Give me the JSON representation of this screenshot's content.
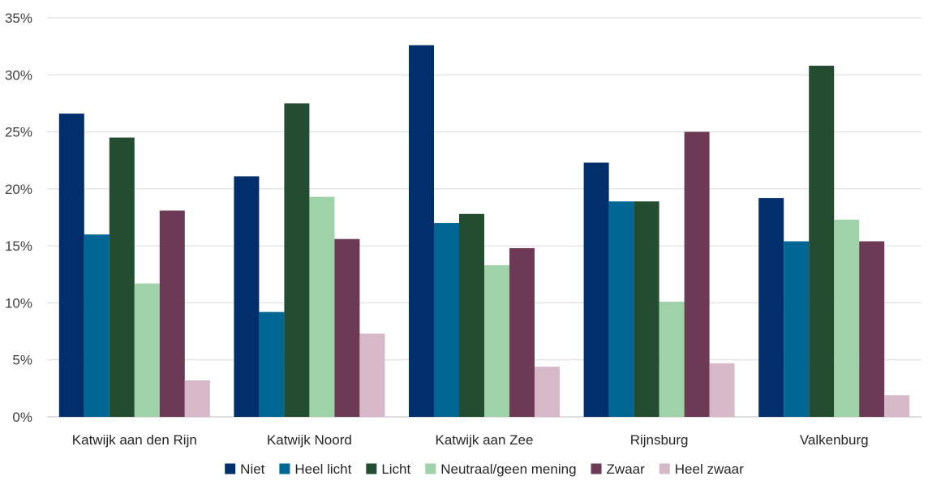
{
  "chart_data": {
    "type": "bar",
    "title": "",
    "xlabel": "",
    "ylabel": "",
    "ylim": [
      0,
      35
    ],
    "y_ticks": [
      "0%",
      "5%",
      "10%",
      "15%",
      "20%",
      "25%",
      "30%",
      "35%"
    ],
    "grid": true,
    "legend_position": "bottom",
    "categories": [
      "Katwijk aan den Rijn",
      "Katwijk Noord",
      "Katwijk aan Zee",
      "Rijnsburg",
      "Valkenburg"
    ],
    "series": [
      {
        "name": "Niet",
        "color": "#002f6c",
        "values": [
          26.6,
          21.1,
          32.6,
          22.3,
          19.2
        ]
      },
      {
        "name": "Heel licht",
        "color": "#006795",
        "values": [
          16.0,
          9.2,
          17.0,
          18.9,
          15.4
        ]
      },
      {
        "name": "Licht",
        "color": "#244c30",
        "values": [
          24.5,
          27.5,
          17.8,
          18.9,
          30.8
        ]
      },
      {
        "name": "Neutraal/geen mening",
        "color": "#9fd2a8",
        "values": [
          11.7,
          19.3,
          13.3,
          10.1,
          17.3
        ]
      },
      {
        "name": "Zwaar",
        "color": "#6d3a55",
        "values": [
          18.1,
          15.6,
          14.8,
          25.0,
          15.4
        ]
      },
      {
        "name": "Heel zwaar",
        "color": "#d7b8c9",
        "values": [
          3.2,
          7.3,
          4.4,
          4.7,
          1.9
        ]
      }
    ]
  }
}
